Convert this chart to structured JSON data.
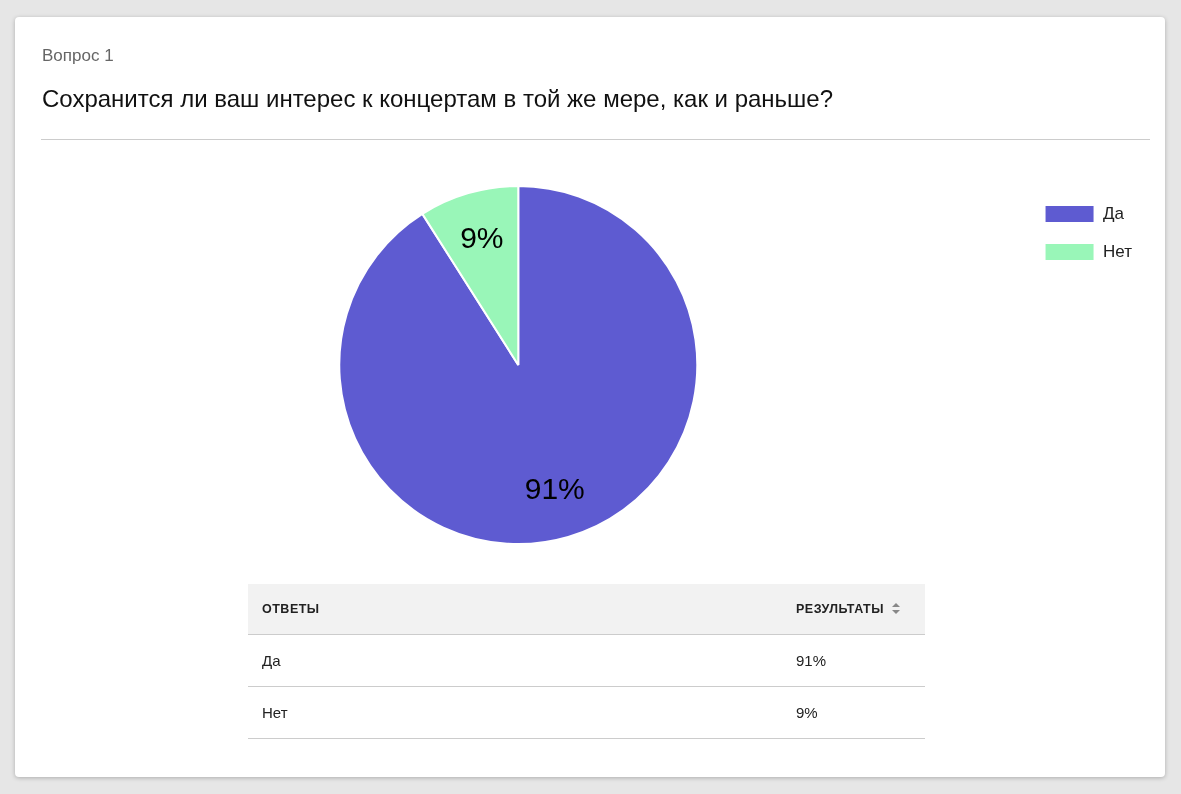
{
  "chart_data": {
    "type": "pie",
    "subtitle": "Вопрос 1",
    "title": "Сохранится ли ваш интерес к концертам в той же мере, как и раньше?",
    "categories": [
      "Да",
      "Нет"
    ],
    "values": [
      91,
      9
    ],
    "colors": [
      "#5e5bd1",
      "#99f6b8"
    ],
    "value_labels": [
      "91%",
      "9%"
    ],
    "legend": "top right",
    "annotations": [
      "ОТВЕТЫ",
      "РЕЗУЛЬТАТЫ"
    ]
  }
}
